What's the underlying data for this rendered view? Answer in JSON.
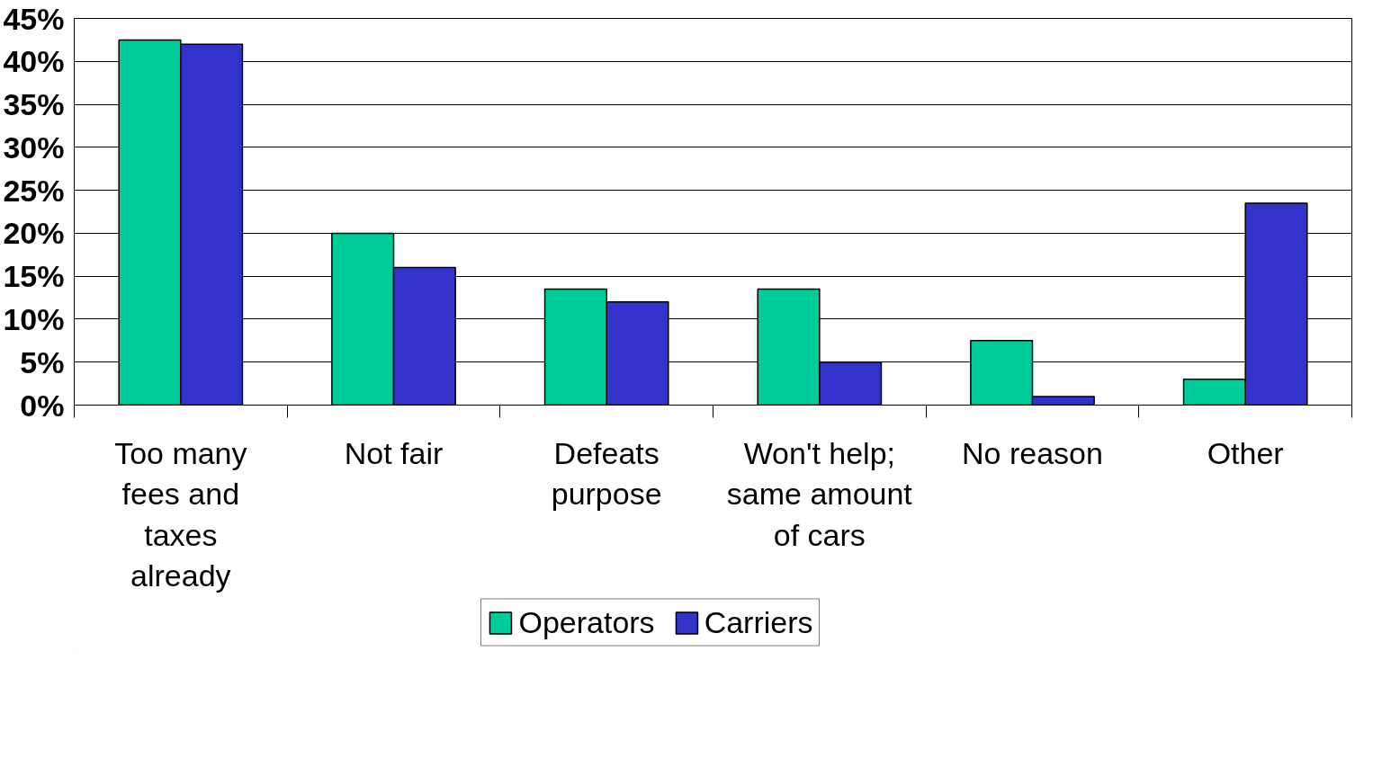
{
  "chart_data": {
    "type": "bar",
    "categories": [
      "Too many fees and taxes already",
      "Not fair",
      "Defeats purpose",
      "Won't help; same amount of cars",
      "No reason",
      "Other"
    ],
    "series": [
      {
        "name": "Operators",
        "color": "#00cc99",
        "values": [
          42.5,
          20,
          13.5,
          13.5,
          7.5,
          3
        ]
      },
      {
        "name": "Carriers",
        "color": "#3333cc",
        "values": [
          42,
          16,
          12,
          5,
          1,
          23.5
        ]
      }
    ],
    "ylim": [
      0,
      45
    ],
    "yticks": [
      {
        "value": 0,
        "label": "0%"
      },
      {
        "value": 5,
        "label": "5%"
      },
      {
        "value": 10,
        "label": "10%"
      },
      {
        "value": 15,
        "label": "15%"
      },
      {
        "value": 20,
        "label": "20%"
      },
      {
        "value": 25,
        "label": "25%"
      },
      {
        "value": 30,
        "label": "30%"
      },
      {
        "value": 35,
        "label": "35%"
      },
      {
        "value": 40,
        "label": "40%"
      },
      {
        "value": 45,
        "label": "45%"
      }
    ],
    "grid": "y",
    "legend": "bottom"
  }
}
